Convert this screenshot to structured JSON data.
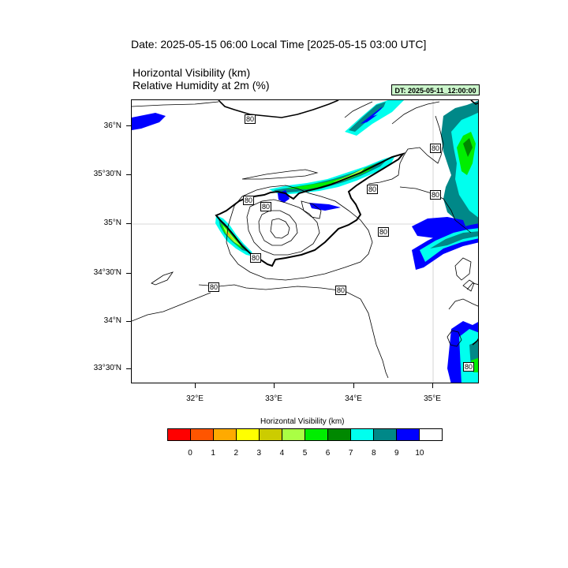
{
  "header": {
    "date_title": "Date: 2025-05-15  06:00 Local Time [2025-05-15  03:00 UTC]",
    "var_title_1": "Horizontal Visibility   (km)",
    "var_title_2": "Relative Humidity at 2m   (%)",
    "dt_badge": "DT: 2025-05-11_12:00:00"
  },
  "map": {
    "lat_labels": [
      "36°N",
      "35°30'N",
      "35°N",
      "34°30'N",
      "34°N",
      "33°30'N"
    ],
    "lon_labels": [
      "32°E",
      "33°E",
      "34°E",
      "35°E"
    ],
    "contour_labels": [
      "80",
      "80",
      "80",
      "80",
      "80",
      "80",
      "80",
      "80",
      "80",
      "80",
      "80"
    ]
  },
  "colorbar": {
    "title": "Horizontal Visibility  (km)",
    "labels": [
      "0",
      "1",
      "2",
      "3",
      "4",
      "5",
      "6",
      "7",
      "8",
      "9",
      "10"
    ],
    "colors": [
      "#ff0000",
      "#ff5500",
      "#ffaa00",
      "#ffff00",
      "#cccc00",
      "#aaff44",
      "#00ee00",
      "#008800",
      "#00ffee",
      "#008888",
      "#0000ff",
      "#ffffff"
    ]
  }
}
